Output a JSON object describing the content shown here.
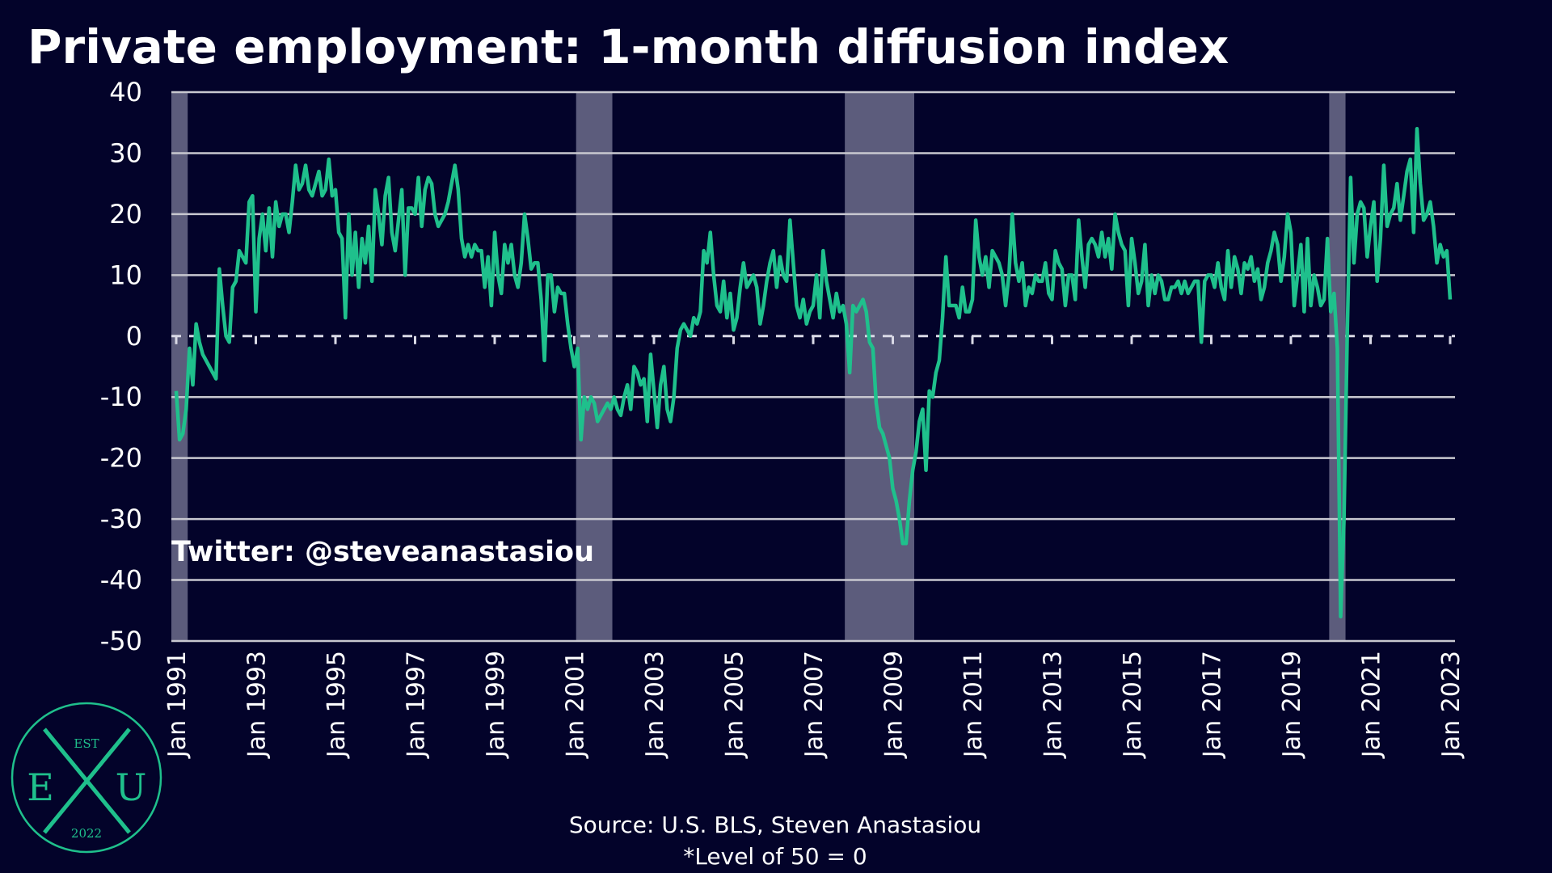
{
  "chart_data": {
    "type": "line",
    "title": "Private employment: 1-month diffusion index",
    "annotation": "Twitter: @steveanastasiou",
    "source": "Source: U.S. BLS, Steven Anastasiou",
    "note": "*Level of 50 = 0",
    "logo": {
      "top": "EST",
      "left": "E",
      "right": "U",
      "bottom": "2022"
    },
    "ylim": [
      -50,
      40
    ],
    "yticks": [
      -50,
      -40,
      -30,
      -20,
      -10,
      0,
      10,
      20,
      30,
      40
    ],
    "grid": true,
    "zero_line": "dashed",
    "background": "#03032a",
    "recession_color": "#5c5c7c",
    "recessions": [
      [
        "1991-01",
        "1991-03"
      ],
      [
        "2001-03",
        "2001-11"
      ],
      [
        "2007-12",
        "2009-06"
      ],
      [
        "2020-02",
        "2020-04"
      ]
    ],
    "xticks": [
      {
        "value": "1991-01",
        "label": "Jan 1991"
      },
      {
        "value": "1993-01",
        "label": "Jan 1993"
      },
      {
        "value": "1995-01",
        "label": "Jan 1995"
      },
      {
        "value": "1997-01",
        "label": "Jan 1997"
      },
      {
        "value": "1999-01",
        "label": "Jan 1999"
      },
      {
        "value": "2001-01",
        "label": "Jan 2001"
      },
      {
        "value": "2003-01",
        "label": "Jan 2003"
      },
      {
        "value": "2005-01",
        "label": "Jan 2005"
      },
      {
        "value": "2007-01",
        "label": "Jan 2007"
      },
      {
        "value": "2009-01",
        "label": "Jan 2009"
      },
      {
        "value": "2011-01",
        "label": "Jan 2011"
      },
      {
        "value": "2013-01",
        "label": "Jan 2013"
      },
      {
        "value": "2015-01",
        "label": "Jan 2015"
      },
      {
        "value": "2017-01",
        "label": "Jan 2017"
      },
      {
        "value": "2019-01",
        "label": "Jan 2019"
      },
      {
        "value": "2021-01",
        "label": "Jan 2021"
      },
      {
        "value": "2023-01",
        "label": "Jan 2023"
      }
    ],
    "x": [
      "1991-01",
      "1991-02",
      "1991-03",
      "1991-04",
      "1991-05",
      "1991-06",
      "1991-07",
      "1991-08",
      "1991-09",
      "1991-10",
      "1991-11",
      "1991-12",
      "1992-01",
      "1992-02",
      "1992-03",
      "1992-04",
      "1992-05",
      "1992-06",
      "1992-07",
      "1992-08",
      "1992-09",
      "1992-10",
      "1992-11",
      "1992-12",
      "1993-01",
      "1993-02",
      "1993-03",
      "1993-04",
      "1993-05",
      "1993-06",
      "1993-07",
      "1993-08",
      "1993-09",
      "1993-10",
      "1993-11",
      "1993-12",
      "1994-01",
      "1994-02",
      "1994-03",
      "1994-04",
      "1994-05",
      "1994-06",
      "1994-07",
      "1994-08",
      "1994-09",
      "1994-10",
      "1994-11",
      "1994-12",
      "1995-01",
      "1995-02",
      "1995-03",
      "1995-04",
      "1995-05",
      "1995-06",
      "1995-07",
      "1995-08",
      "1995-09",
      "1995-10",
      "1995-11",
      "1995-12",
      "1996-01",
      "1996-02",
      "1996-03",
      "1996-04",
      "1996-05",
      "1996-06",
      "1996-07",
      "1996-08",
      "1996-09",
      "1996-10",
      "1996-11",
      "1996-12",
      "1997-01",
      "1997-02",
      "1997-03",
      "1997-04",
      "1997-05",
      "1997-06",
      "1997-07",
      "1997-08",
      "1997-09",
      "1997-10",
      "1997-11",
      "1997-12",
      "1998-01",
      "1998-02",
      "1998-03",
      "1998-04",
      "1998-05",
      "1998-06",
      "1998-07",
      "1998-08",
      "1998-09",
      "1998-10",
      "1998-11",
      "1998-12",
      "1999-01",
      "1999-02",
      "1999-03",
      "1999-04",
      "1999-05",
      "1999-06",
      "1999-07",
      "1999-08",
      "1999-09",
      "1999-10",
      "1999-11",
      "1999-12",
      "2000-01",
      "2000-02",
      "2000-03",
      "2000-04",
      "2000-05",
      "2000-06",
      "2000-07",
      "2000-08",
      "2000-09",
      "2000-10",
      "2000-11",
      "2000-12",
      "2001-01",
      "2001-02",
      "2001-03",
      "2001-04",
      "2001-05",
      "2001-06",
      "2001-07",
      "2001-08",
      "2001-09",
      "2001-10",
      "2001-11",
      "2001-12",
      "2002-01",
      "2002-02",
      "2002-03",
      "2002-04",
      "2002-05",
      "2002-06",
      "2002-07",
      "2002-08",
      "2002-09",
      "2002-10",
      "2002-11",
      "2002-12",
      "2003-01",
      "2003-02",
      "2003-03",
      "2003-04",
      "2003-05",
      "2003-06",
      "2003-07",
      "2003-08",
      "2003-09",
      "2003-10",
      "2003-11",
      "2003-12",
      "2004-01",
      "2004-02",
      "2004-03",
      "2004-04",
      "2004-05",
      "2004-06",
      "2004-07",
      "2004-08",
      "2004-09",
      "2004-10",
      "2004-11",
      "2004-12",
      "2005-01",
      "2005-02",
      "2005-03",
      "2005-04",
      "2005-05",
      "2005-06",
      "2005-07",
      "2005-08",
      "2005-09",
      "2005-10",
      "2005-11",
      "2005-12",
      "2006-01",
      "2006-02",
      "2006-03",
      "2006-04",
      "2006-05",
      "2006-06",
      "2006-07",
      "2006-08",
      "2006-09",
      "2006-10",
      "2006-11",
      "2006-12",
      "2007-01",
      "2007-02",
      "2007-03",
      "2007-04",
      "2007-05",
      "2007-06",
      "2007-07",
      "2007-08",
      "2007-09",
      "2007-10",
      "2007-11",
      "2007-12",
      "2008-01",
      "2008-02",
      "2008-03",
      "2008-04",
      "2008-05",
      "2008-06",
      "2008-07",
      "2008-08",
      "2008-09",
      "2008-10",
      "2008-11",
      "2008-12",
      "2009-01",
      "2009-02",
      "2009-03",
      "2009-04",
      "2009-05",
      "2009-06",
      "2009-07",
      "2009-08",
      "2009-09",
      "2009-10",
      "2009-11",
      "2009-12",
      "2010-01",
      "2010-02",
      "2010-03",
      "2010-04",
      "2010-05",
      "2010-06",
      "2010-07",
      "2010-08",
      "2010-09",
      "2010-10",
      "2010-11",
      "2010-12",
      "2011-01",
      "2011-02",
      "2011-03",
      "2011-04",
      "2011-05",
      "2011-06",
      "2011-07",
      "2011-08",
      "2011-09",
      "2011-10",
      "2011-11",
      "2011-12",
      "2012-01",
      "2012-02",
      "2012-03",
      "2012-04",
      "2012-05",
      "2012-06",
      "2012-07",
      "2012-08",
      "2012-09",
      "2012-10",
      "2012-11",
      "2012-12",
      "2013-01",
      "2013-02",
      "2013-03",
      "2013-04",
      "2013-05",
      "2013-06",
      "2013-07",
      "2013-08",
      "2013-09",
      "2013-10",
      "2013-11",
      "2013-12",
      "2014-01",
      "2014-02",
      "2014-03",
      "2014-04",
      "2014-05",
      "2014-06",
      "2014-07",
      "2014-08",
      "2014-09",
      "2014-10",
      "2014-11",
      "2014-12",
      "2015-01",
      "2015-02",
      "2015-03",
      "2015-04",
      "2015-05",
      "2015-06",
      "2015-07",
      "2015-08",
      "2015-09",
      "2015-10",
      "2015-11",
      "2015-12",
      "2016-01",
      "2016-02",
      "2016-03",
      "2016-04",
      "2016-05",
      "2016-06",
      "2016-07",
      "2016-08",
      "2016-09",
      "2016-10",
      "2016-11",
      "2016-12",
      "2017-01",
      "2017-02",
      "2017-03",
      "2017-04",
      "2017-05",
      "2017-06",
      "2017-07",
      "2017-08",
      "2017-09",
      "2017-10",
      "2017-11",
      "2017-12",
      "2018-01",
      "2018-02",
      "2018-03",
      "2018-04",
      "2018-05",
      "2018-06",
      "2018-07",
      "2018-08",
      "2018-09",
      "2018-10",
      "2018-11",
      "2018-12",
      "2019-01",
      "2019-02",
      "2019-03",
      "2019-04",
      "2019-05",
      "2019-06",
      "2019-07",
      "2019-08",
      "2019-09",
      "2019-10",
      "2019-11",
      "2019-12",
      "2020-01",
      "2020-02",
      "2020-03",
      "2020-04",
      "2020-05",
      "2020-06",
      "2020-07",
      "2020-08",
      "2020-09",
      "2020-10",
      "2020-11",
      "2020-12",
      "2021-01",
      "2021-02",
      "2021-03",
      "2021-04",
      "2021-05",
      "2021-06",
      "2021-07",
      "2021-08",
      "2021-09",
      "2021-10",
      "2021-11",
      "2021-12",
      "2022-01",
      "2022-02",
      "2022-03",
      "2022-04",
      "2022-05",
      "2022-06",
      "2022-07",
      "2022-08",
      "2022-09",
      "2022-10",
      "2022-11",
      "2022-12",
      "2023-01"
    ],
    "series": [
      {
        "color": "#1fc08c",
        "values": [
          -9,
          -17,
          -16,
          -12,
          -2,
          -8,
          2,
          -1,
          -3,
          -4,
          -5,
          -6,
          -7,
          11,
          5,
          0,
          -1,
          8,
          9,
          14,
          13,
          12,
          22,
          23,
          4,
          16,
          20,
          14,
          21,
          13,
          22,
          18,
          20,
          20,
          17,
          22,
          28,
          24,
          25,
          28,
          24,
          23,
          25,
          27,
          23,
          24,
          29,
          23,
          24,
          17,
          16,
          3,
          20,
          10,
          17,
          8,
          16,
          12,
          18,
          9,
          24,
          20,
          15,
          23,
          26,
          17,
          14,
          19,
          24,
          10,
          21,
          21,
          20,
          26,
          18,
          24,
          26,
          25,
          20,
          18,
          19,
          20,
          22,
          25,
          28,
          24,
          16,
          13,
          15,
          13,
          15,
          14,
          14,
          8,
          13,
          5,
          17,
          10,
          7,
          15,
          12,
          15,
          10,
          8,
          12,
          20,
          16,
          11,
          12,
          12,
          6,
          -4,
          10,
          10,
          4,
          8,
          7,
          7,
          2,
          -2,
          -5,
          -2,
          -17,
          -10,
          -12,
          -10,
          -11,
          -14,
          -13,
          -12,
          -11,
          -12,
          -10,
          -12,
          -13,
          -10,
          -8,
          -12,
          -5,
          -6,
          -8,
          -7,
          -14,
          -3,
          -9,
          -15,
          -8,
          -5,
          -12,
          -14,
          -10,
          -2,
          1,
          2,
          1,
          0,
          3,
          2,
          4,
          14,
          12,
          17,
          10,
          5,
          4,
          9,
          3,
          7,
          1,
          3,
          8,
          12,
          8,
          9,
          10,
          8,
          2,
          5,
          9,
          12,
          14,
          8,
          13,
          10,
          9,
          19,
          12,
          5,
          3,
          6,
          2,
          4,
          5,
          10,
          3,
          14,
          9,
          6,
          3,
          7,
          4,
          5,
          2,
          -6,
          5,
          4,
          5,
          6,
          4,
          -1,
          -2,
          -11,
          -15,
          -16,
          -18,
          -20,
          -25,
          -27,
          -30,
          -34,
          -34,
          -27,
          -22,
          -19,
          -14,
          -12,
          -22,
          -9,
          -10,
          -6,
          -4,
          3,
          13,
          5,
          5,
          5,
          3,
          8,
          4,
          4,
          6,
          19,
          13,
          10,
          13,
          8,
          14,
          13,
          12,
          10,
          5,
          10,
          20,
          12,
          9,
          12,
          5,
          8,
          7,
          10,
          9,
          9,
          12,
          7,
          6,
          14,
          12,
          11,
          5,
          10,
          10,
          6,
          19,
          13,
          8,
          15,
          16,
          15,
          13,
          17,
          13,
          16,
          11,
          20,
          17,
          15,
          14,
          5,
          16,
          12,
          7,
          9,
          15,
          5,
          10,
          7,
          10,
          9,
          6,
          6,
          8,
          8,
          9,
          7,
          9,
          7,
          8,
          9,
          9,
          -1,
          9,
          10,
          10,
          8,
          12,
          8,
          6,
          14,
          8,
          13,
          11,
          7,
          12,
          11,
          13,
          9,
          11,
          6,
          8,
          12,
          14,
          17,
          15,
          9,
          13,
          20,
          17,
          5,
          10,
          15,
          4,
          16,
          5,
          10,
          8,
          5,
          6,
          16,
          4,
          7,
          -2,
          -46,
          -30,
          1,
          26,
          12,
          20,
          22,
          21,
          13,
          18,
          22,
          9,
          16,
          28,
          18,
          20,
          21,
          25,
          19,
          23,
          27,
          29,
          17,
          34,
          25,
          19,
          20,
          22,
          18,
          12,
          15,
          13,
          14,
          6
        ]
      }
    ]
  }
}
